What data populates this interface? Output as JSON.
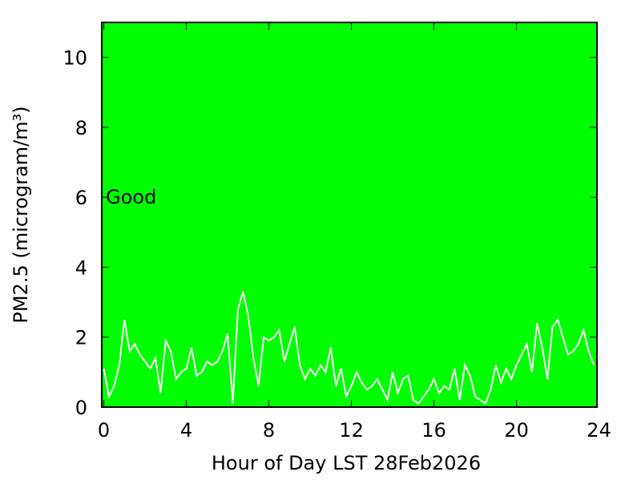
{
  "chart_data": {
    "type": "line",
    "xlabel": "Hour of Day LST 28Feb2026",
    "ylabel": "PM2.5 (microgram/m³)",
    "annotation": {
      "text": "Good",
      "x": 0.1,
      "y": 6
    },
    "background": "#00ff00",
    "xlim": [
      -0.1,
      23.9
    ],
    "ylim": [
      0,
      11
    ],
    "xticks": [
      0,
      4,
      8,
      12,
      16,
      20,
      24
    ],
    "yticks": [
      0,
      2,
      4,
      6,
      8,
      10
    ],
    "x": [
      0,
      0.25,
      0.5,
      0.75,
      1,
      1.25,
      1.5,
      1.75,
      2,
      2.25,
      2.5,
      2.75,
      3,
      3.25,
      3.5,
      3.75,
      4,
      4.25,
      4.5,
      4.75,
      5,
      5.25,
      5.5,
      5.75,
      6,
      6.25,
      6.5,
      6.75,
      7,
      7.25,
      7.5,
      7.75,
      8,
      8.25,
      8.5,
      8.75,
      9,
      9.25,
      9.5,
      9.75,
      10,
      10.25,
      10.5,
      10.75,
      11,
      11.25,
      11.5,
      11.75,
      12,
      12.25,
      12.5,
      12.75,
      13,
      13.25,
      13.5,
      13.75,
      14,
      14.25,
      14.5,
      14.75,
      15,
      15.25,
      15.5,
      15.75,
      16,
      16.25,
      16.5,
      16.75,
      17,
      17.25,
      17.5,
      17.75,
      18,
      18.25,
      18.5,
      18.75,
      19,
      19.25,
      19.5,
      19.75,
      20,
      20.25,
      20.5,
      20.75,
      21,
      21.25,
      21.5,
      21.75,
      22,
      22.25,
      22.5,
      22.75,
      23,
      23.25,
      23.5,
      23.75
    ],
    "series": [
      {
        "color": "#ffffff",
        "values": [
          1.1,
          0.3,
          0.6,
          1.2,
          2.5,
          1.6,
          1.8,
          1.5,
          1.3,
          1.1,
          1.4,
          0.4,
          1.9,
          1.6,
          0.8,
          1.0,
          1.1,
          1.7,
          0.9,
          1.0,
          1.3,
          1.2,
          1.3,
          1.6,
          2.1,
          0.1,
          2.8,
          3.3,
          2.6,
          1.4,
          0.6,
          2.0,
          1.9,
          2.0,
          2.2,
          1.3,
          1.8,
          2.3,
          1.2,
          0.8,
          1.1,
          0.9,
          1.2,
          1.0,
          1.7,
          0.6,
          1.1,
          0.3,
          0.6,
          1.0,
          0.7,
          0.5,
          0.6,
          0.8,
          0.5,
          0.2,
          1.0,
          0.4,
          0.8,
          0.9,
          0.2,
          0.1,
          0.3,
          0.5,
          0.8,
          0.4,
          0.6,
          0.5,
          1.1,
          0.2,
          1.2,
          0.9,
          0.3,
          0.2,
          0.1,
          0.5,
          1.2,
          0.7,
          1.1,
          0.8,
          1.2,
          1.5,
          1.8,
          1.0,
          2.4,
          1.7,
          0.8,
          2.3,
          2.5,
          2.0,
          1.5,
          1.6,
          1.8,
          2.2,
          1.6,
          1.2
        ]
      }
    ]
  }
}
